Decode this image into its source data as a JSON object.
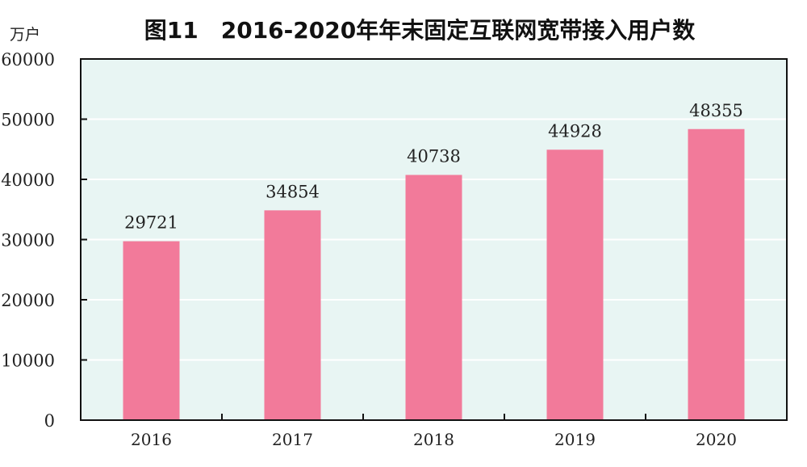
{
  "chart_data": {
    "type": "bar",
    "title": "图11　2016-2020年年末固定互联网宽带接入用户数",
    "ylabel": "万户",
    "xlabel": "",
    "categories": [
      "2016",
      "2017",
      "2018",
      "2019",
      "2020"
    ],
    "values": [
      29721,
      34854,
      40738,
      44928,
      48355
    ],
    "ylim": [
      0,
      60000
    ],
    "yticks": [
      0,
      10000,
      20000,
      30000,
      40000,
      50000,
      60000
    ],
    "grid": true,
    "colors": {
      "bar": "#f27a9a",
      "plot_bg": "#e8f5f3",
      "grid": "#ffffff"
    }
  }
}
